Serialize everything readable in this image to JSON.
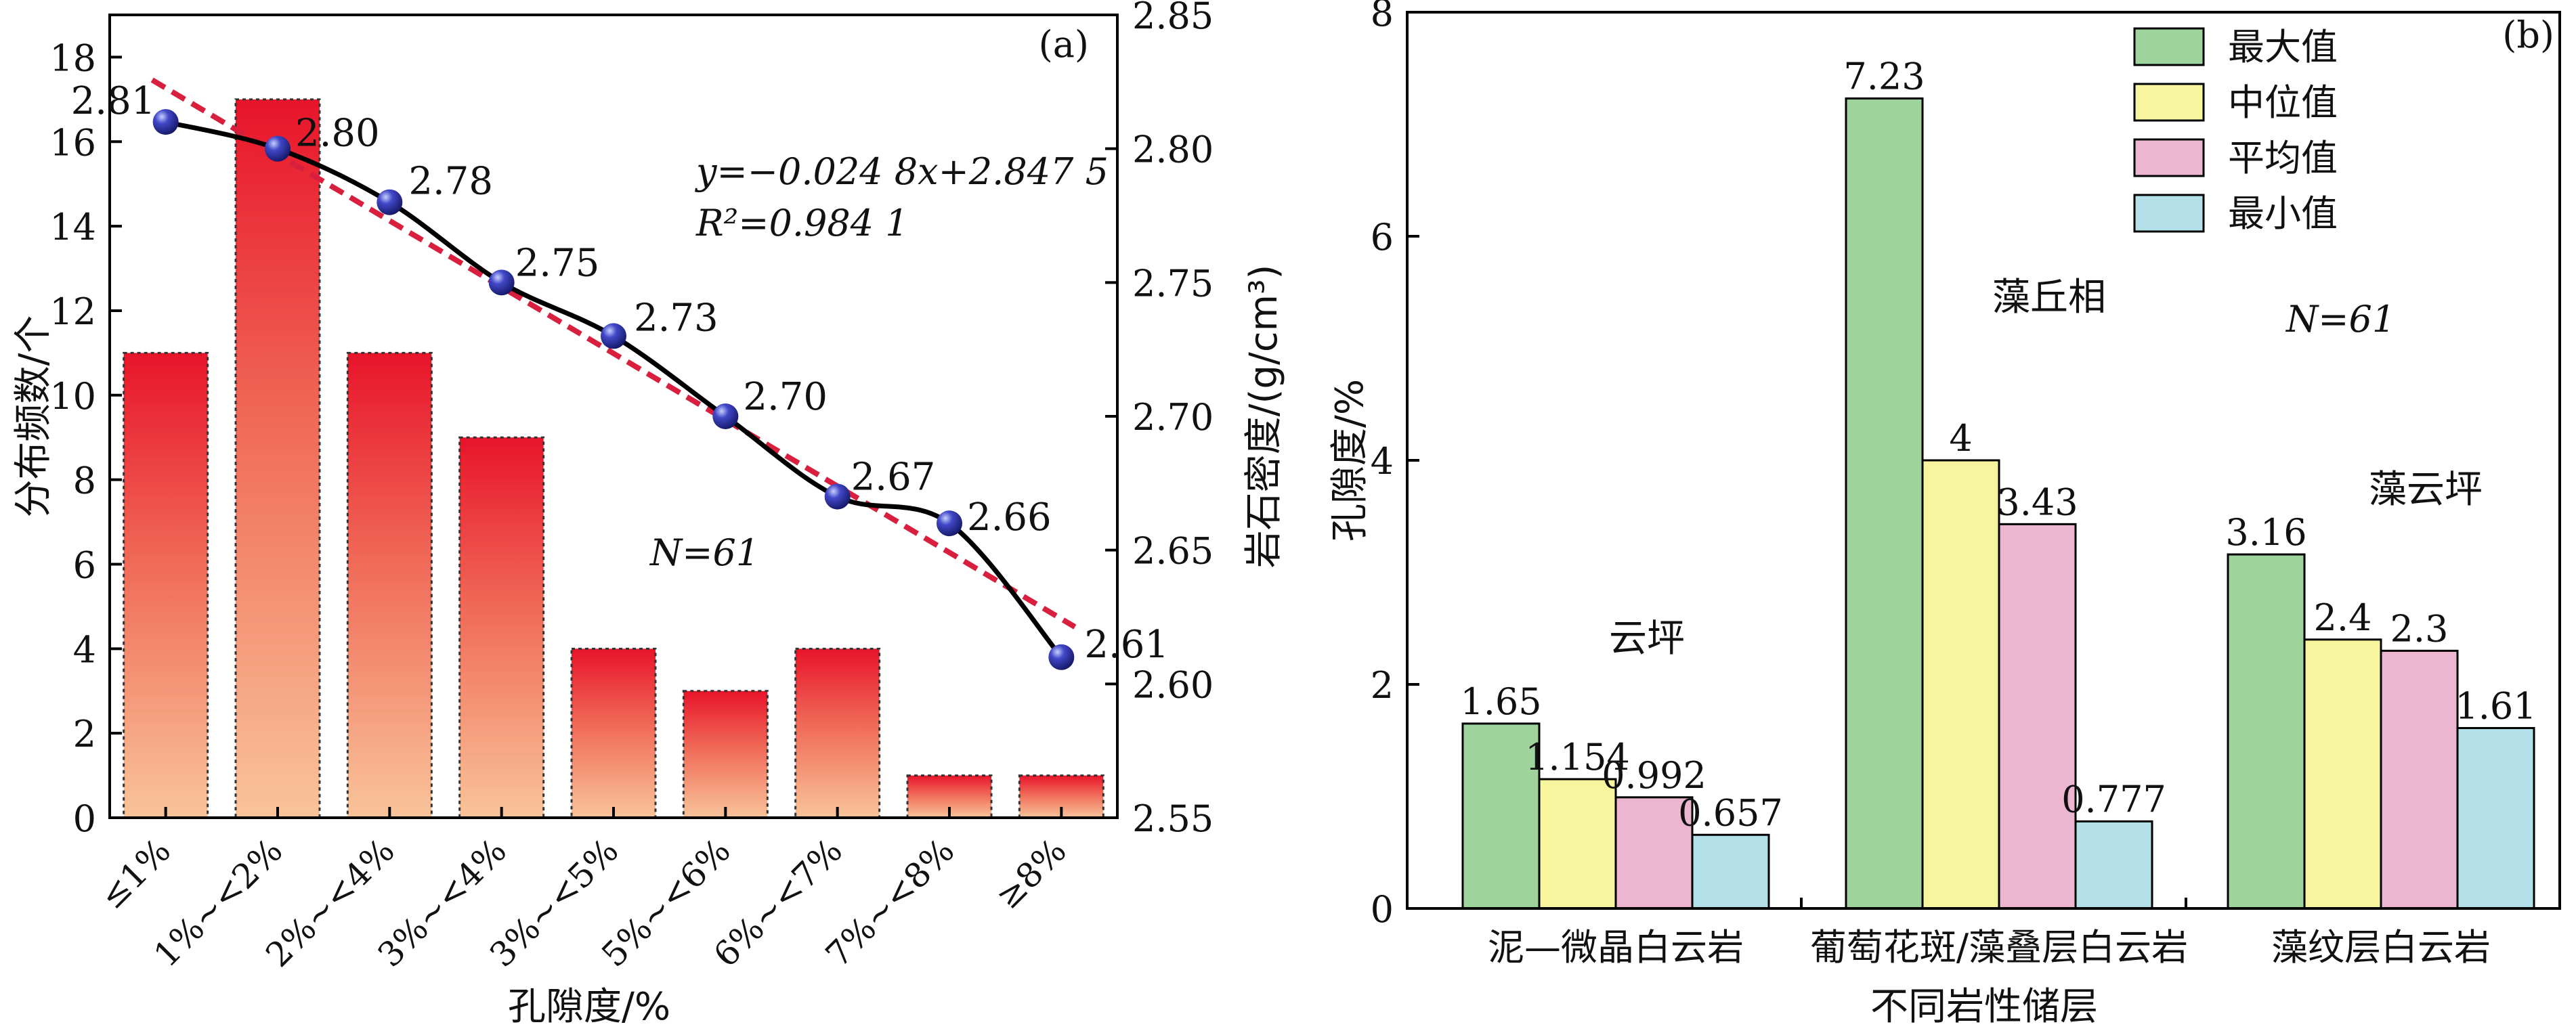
{
  "chart_data": [
    {
      "panel": "(a)",
      "type": "bar",
      "categories": [
        "≤1%",
        "1%~<2%",
        "2%~<4%",
        "3%~<4%",
        "3%~<5%",
        "5%~<6%",
        "6%~<7%",
        "7%~<8%",
        "≥8%"
      ],
      "xlabel": "孔隙度/%",
      "ylabel": "分布频数/个",
      "y2label": "岩石密度/(g/cm³)",
      "ylim": [
        0,
        19
      ],
      "yticks": [
        0,
        2,
        4,
        6,
        8,
        10,
        12,
        14,
        16,
        18
      ],
      "y2lim": [
        2.55,
        2.85
      ],
      "y2ticks": [
        "2.55",
        "2.60",
        "2.65",
        "2.70",
        "2.75",
        "2.80",
        "2.85"
      ],
      "values": [
        11,
        17,
        11,
        9,
        4,
        3,
        4,
        1,
        1
      ],
      "density_series": {
        "values": [
          2.81,
          2.8,
          2.78,
          2.75,
          2.73,
          2.7,
          2.67,
          2.66,
          2.61
        ],
        "labels": [
          "2.81",
          "2.80",
          "2.78",
          "2.75",
          "2.73",
          "2.70",
          "2.67",
          "2.66",
          "2.61"
        ],
        "fit": {
          "slope": -0.0248,
          "intercept": 2.8475
        }
      },
      "equation": "y=−0.024 8x+2.847 5",
      "r2": "R²=0.984 1",
      "n_label": "N=61",
      "colors": {
        "bar_top": "#e8142a",
        "bar_bottom": "#f9c49a",
        "curve": "#000000",
        "fit_line": "#d81f3d",
        "marker": "#2b2f9e"
      }
    },
    {
      "panel": "(b)",
      "type": "bar",
      "categories": [
        "泥—微晶白云岩",
        "葡萄花斑/藻叠层白云岩",
        "藻纹层白云岩"
      ],
      "xlabel": "不同岩性储层",
      "ylabel": "孔隙度/%",
      "ylim": [
        0,
        8
      ],
      "yticks": [
        0,
        2,
        4,
        6,
        8
      ],
      "series": [
        {
          "name": "最大值",
          "values": [
            1.65,
            7.23,
            3.16
          ],
          "labels": [
            "1.65",
            "7.23",
            "3.16"
          ],
          "color": "#9fd39c"
        },
        {
          "name": "中位值",
          "values": [
            1.154,
            4,
            2.4
          ],
          "labels": [
            "1.154",
            "4",
            "2.4"
          ],
          "color": "#f7f59d"
        },
        {
          "name": "平均值",
          "values": [
            0.992,
            3.43,
            2.3
          ],
          "labels": [
            "0.992",
            "3.43",
            "2.3"
          ],
          "color": "#ecb5d0"
        },
        {
          "name": "最小值",
          "values": [
            0.657,
            0.777,
            1.61
          ],
          "labels": [
            "0.657",
            "0.777",
            "1.61"
          ],
          "color": "#b4e0ea"
        }
      ],
      "annotations": [
        "云坪",
        "藻丘相",
        "藻云坪"
      ],
      "n_label": "N=61",
      "legend": "top-right"
    }
  ]
}
